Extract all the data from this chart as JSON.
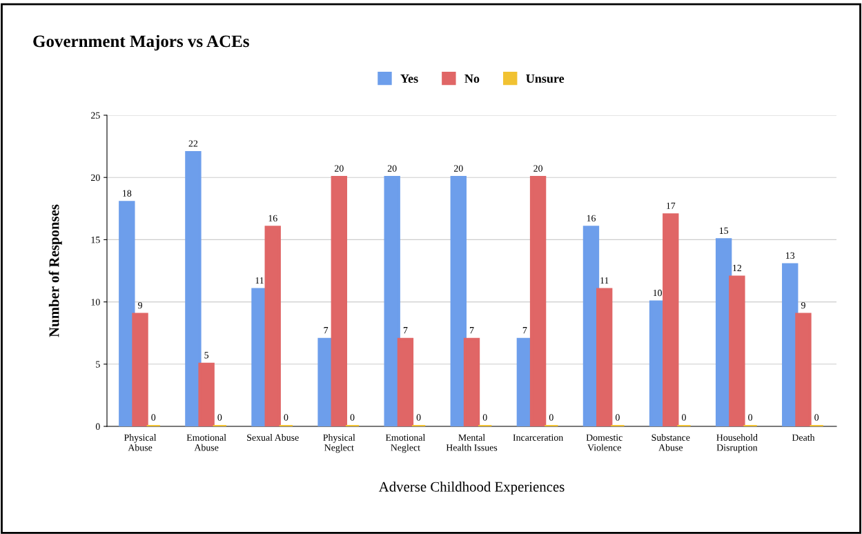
{
  "chart_data": {
    "type": "bar",
    "title": "Government Majors vs ACEs",
    "xlabel": "Adverse Childhood Experiences",
    "ylabel": "Number of Responses",
    "categories": [
      "Physical\nAbuse",
      "Emotional\nAbuse",
      "Sexual Abuse",
      "Physical\nNeglect",
      "Emotional\nNeglect",
      "Mental\nHealth Issues",
      "Incarceration",
      "Domestic\nViolence",
      "Substance\nAbuse",
      "Household\nDisruption",
      "Death"
    ],
    "series": [
      {
        "name": "Yes",
        "color": "#6d9eeb",
        "values": [
          18,
          22,
          11,
          7,
          20,
          20,
          7,
          16,
          10,
          15,
          13
        ]
      },
      {
        "name": "No",
        "color": "#e06666",
        "values": [
          9,
          5,
          16,
          20,
          7,
          7,
          20,
          11,
          17,
          12,
          9
        ]
      },
      {
        "name": "Unsure",
        "color": "#f1c232",
        "values": [
          0,
          0,
          0,
          0,
          0,
          0,
          0,
          0,
          0,
          0,
          0
        ]
      }
    ],
    "ylim": [
      0,
      25
    ],
    "yticks": [
      0,
      5,
      10,
      15,
      20,
      25
    ],
    "grid": "y",
    "legend": "top",
    "data_labels": true
  }
}
